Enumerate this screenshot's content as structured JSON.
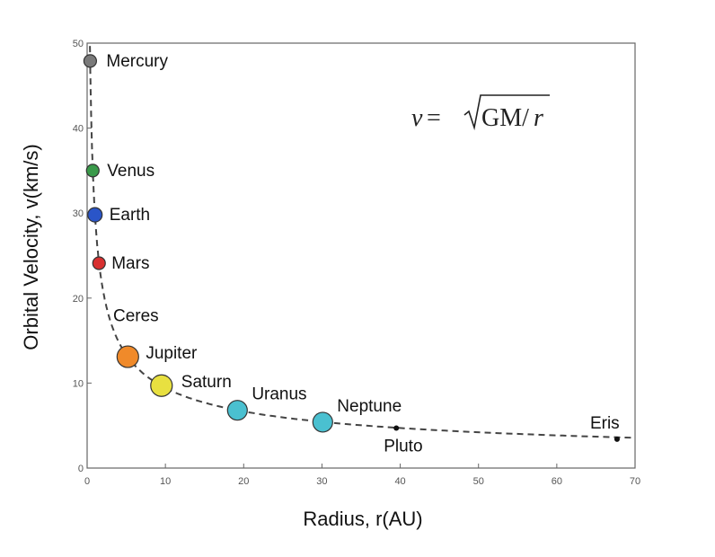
{
  "chart_data": {
    "type": "scatter",
    "xlabel": "Radius, r(AU)",
    "ylabel": "Orbital Velocity, v(km/s)",
    "xlim": [
      0,
      70
    ],
    "ylim": [
      0,
      50
    ],
    "x_ticks": [
      0,
      10,
      20,
      30,
      40,
      50,
      60,
      70
    ],
    "y_ticks": [
      0,
      10,
      20,
      30,
      40,
      50
    ],
    "grid": false,
    "annotation": {
      "lhs": "v",
      "eq": " = ",
      "gm": "GM/",
      "r": "r"
    },
    "curve": "dashed",
    "points": [
      {
        "name": "Mercury",
        "x": 0.39,
        "y": 47.9,
        "color": "#7a7a7a",
        "size": "small"
      },
      {
        "name": "Venus",
        "x": 0.72,
        "y": 35.0,
        "color": "#3a9a4a",
        "size": "small"
      },
      {
        "name": "Earth",
        "x": 1.0,
        "y": 29.8,
        "color": "#2a55c8",
        "size": "medium"
      },
      {
        "name": "Mars",
        "x": 1.52,
        "y": 24.1,
        "color": "#d83030",
        "size": "small"
      },
      {
        "name": "Ceres",
        "x": 2.77,
        "y": 17.9,
        "color": "none",
        "size": "none"
      },
      {
        "name": "Jupiter",
        "x": 5.2,
        "y": 13.1,
        "color": "#f08a2a",
        "size": "large"
      },
      {
        "name": "Saturn",
        "x": 9.5,
        "y": 9.7,
        "color": "#e8e040",
        "size": "large"
      },
      {
        "name": "Uranus",
        "x": 19.2,
        "y": 6.8,
        "color": "#4ac0d0",
        "size": "medium-large"
      },
      {
        "name": "Neptune",
        "x": 30.1,
        "y": 5.4,
        "color": "#4ac0d0",
        "size": "medium-large"
      },
      {
        "name": "Pluto",
        "x": 39.5,
        "y": 4.7,
        "color": "#111111",
        "size": "dot"
      },
      {
        "name": "Eris",
        "x": 67.7,
        "y": 3.4,
        "color": "#111111",
        "size": "dot"
      }
    ]
  }
}
